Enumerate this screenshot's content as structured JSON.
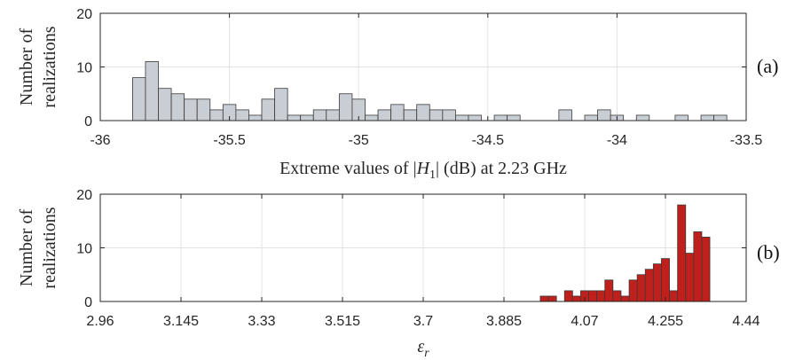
{
  "chart_data": [
    {
      "type": "bar",
      "panel_label": "(a)",
      "xlabel": "Extreme values of |H1| (dB) at 2.23 GHz",
      "ylabel": [
        "Number of",
        "realizations"
      ],
      "xlim": [
        -36,
        -33.5
      ],
      "ylim": [
        0,
        20
      ],
      "xticks": [
        "-36",
        "-35.5",
        "-35",
        "-34.5",
        "-34",
        "-33.5"
      ],
      "yticks": [
        "0",
        "10",
        "20"
      ],
      "grid": true,
      "bin_width": 0.05,
      "bar_color": "#c9cdd4",
      "bins": [
        {
          "x": -35.85,
          "v": 8
        },
        {
          "x": -35.8,
          "v": 11
        },
        {
          "x": -35.75,
          "v": 6
        },
        {
          "x": -35.7,
          "v": 5
        },
        {
          "x": -35.65,
          "v": 4
        },
        {
          "x": -35.6,
          "v": 4
        },
        {
          "x": -35.55,
          "v": 2
        },
        {
          "x": -35.5,
          "v": 3
        },
        {
          "x": -35.45,
          "v": 2
        },
        {
          "x": -35.4,
          "v": 1
        },
        {
          "x": -35.35,
          "v": 4
        },
        {
          "x": -35.3,
          "v": 6
        },
        {
          "x": -35.25,
          "v": 1
        },
        {
          "x": -35.2,
          "v": 1
        },
        {
          "x": -35.15,
          "v": 2
        },
        {
          "x": -35.1,
          "v": 2
        },
        {
          "x": -35.05,
          "v": 5
        },
        {
          "x": -35.0,
          "v": 4
        },
        {
          "x": -34.95,
          "v": 1
        },
        {
          "x": -34.9,
          "v": 2
        },
        {
          "x": -34.85,
          "v": 3
        },
        {
          "x": -34.8,
          "v": 2
        },
        {
          "x": -34.75,
          "v": 3
        },
        {
          "x": -34.7,
          "v": 2
        },
        {
          "x": -34.65,
          "v": 2
        },
        {
          "x": -34.6,
          "v": 1
        },
        {
          "x": -34.55,
          "v": 1
        },
        {
          "x": -34.45,
          "v": 1
        },
        {
          "x": -34.4,
          "v": 1
        },
        {
          "x": -34.2,
          "v": 2
        },
        {
          "x": -34.1,
          "v": 1
        },
        {
          "x": -34.05,
          "v": 2
        },
        {
          "x": -34.0,
          "v": 1
        },
        {
          "x": -33.9,
          "v": 1
        },
        {
          "x": -33.75,
          "v": 1
        },
        {
          "x": -33.65,
          "v": 1
        },
        {
          "x": -33.6,
          "v": 1
        }
      ]
    },
    {
      "type": "bar",
      "panel_label": "(b)",
      "xlabel": "εr",
      "ylabel": [
        "Number of",
        "realizations"
      ],
      "xlim": [
        2.96,
        4.44
      ],
      "ylim": [
        0,
        20
      ],
      "xticks": [
        "2.96",
        "3.145",
        "3.33",
        "3.515",
        "3.7",
        "3.885",
        "4.07",
        "4.255",
        "4.44"
      ],
      "yticks": [
        "0",
        "10",
        "20"
      ],
      "grid": true,
      "bin_width": 0.0185,
      "bar_color": "#c0201c",
      "bins": [
        {
          "x": 3.9775,
          "v": 1
        },
        {
          "x": 3.996,
          "v": 1
        },
        {
          "x": 4.033,
          "v": 2
        },
        {
          "x": 4.0515,
          "v": 1
        },
        {
          "x": 4.07,
          "v": 2
        },
        {
          "x": 4.0885,
          "v": 2
        },
        {
          "x": 4.107,
          "v": 2
        },
        {
          "x": 4.1255,
          "v": 4
        },
        {
          "x": 4.144,
          "v": 2
        },
        {
          "x": 4.1625,
          "v": 1
        },
        {
          "x": 4.181,
          "v": 4
        },
        {
          "x": 4.1995,
          "v": 5
        },
        {
          "x": 4.218,
          "v": 6
        },
        {
          "x": 4.2365,
          "v": 7
        },
        {
          "x": 4.255,
          "v": 8
        },
        {
          "x": 4.2735,
          "v": 2
        },
        {
          "x": 4.292,
          "v": 18
        },
        {
          "x": 4.3105,
          "v": 9
        },
        {
          "x": 4.329,
          "v": 13
        },
        {
          "x": 4.3475,
          "v": 12
        }
      ]
    }
  ]
}
